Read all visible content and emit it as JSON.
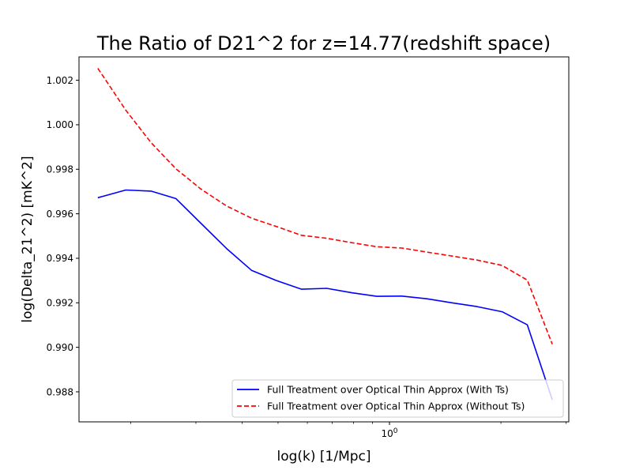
{
  "chart_data": {
    "type": "line",
    "title": "The Ratio of D21^2 for z=14.77(redshift space)",
    "xlabel": "log(k) [1/Mpc]",
    "ylabel": "log(Delta_21^2) [mK^2]",
    "xscale": "log",
    "xlim": [
      0.145,
      3.05
    ],
    "ylim": [
      0.98665,
      1.00305
    ],
    "x_major_ticks": [
      {
        "value": 1,
        "label": "10^0"
      }
    ],
    "x_minor_ticks": [
      0.2,
      0.3,
      0.4,
      0.5,
      0.6,
      0.7,
      0.8,
      0.9,
      2,
      3
    ],
    "y_ticks": [
      {
        "value": 0.988,
        "label": "0.988"
      },
      {
        "value": 0.99,
        "label": "0.990"
      },
      {
        "value": 0.992,
        "label": "0.992"
      },
      {
        "value": 0.994,
        "label": "0.994"
      },
      {
        "value": 0.996,
        "label": "0.996"
      },
      {
        "value": 0.998,
        "label": "0.998"
      },
      {
        "value": 1.0,
        "label": "1.000"
      },
      {
        "value": 1.002,
        "label": "1.002"
      }
    ],
    "legend_position": "lower-right",
    "series": [
      {
        "name": "Full Treatment over Optical Thin Approx (With Ts)",
        "color": "#0000ff",
        "dash": "solid",
        "x": [
          0.163,
          0.194,
          0.227,
          0.265,
          0.31,
          0.363,
          0.424,
          0.495,
          0.579,
          0.677,
          0.791,
          0.924,
          1.08,
          1.262,
          1.475,
          1.724,
          2.015,
          2.356,
          2.753
        ],
        "y": [
          0.99672,
          0.99707,
          0.99702,
          0.99668,
          0.99556,
          0.99444,
          0.99346,
          0.993,
          0.99261,
          0.99265,
          0.99245,
          0.99229,
          0.9923,
          0.99218,
          0.992,
          0.99183,
          0.9916,
          0.99101,
          0.98764
        ]
      },
      {
        "name": "Full Treatment over Optical Thin Approx (Without Ts)",
        "color": "#ff0000",
        "dash": "dashed",
        "x": [
          0.163,
          0.194,
          0.227,
          0.265,
          0.31,
          0.363,
          0.424,
          0.495,
          0.579,
          0.677,
          0.791,
          0.924,
          1.08,
          1.262,
          1.475,
          1.724,
          2.015,
          2.356,
          2.753
        ],
        "y": [
          1.00254,
          1.00065,
          0.9992,
          0.99802,
          0.9971,
          0.99635,
          0.9958,
          0.99543,
          0.99503,
          0.9949,
          0.9947,
          0.99452,
          0.99446,
          0.99428,
          0.9941,
          0.99392,
          0.99368,
          0.99302,
          0.99014
        ]
      }
    ]
  }
}
